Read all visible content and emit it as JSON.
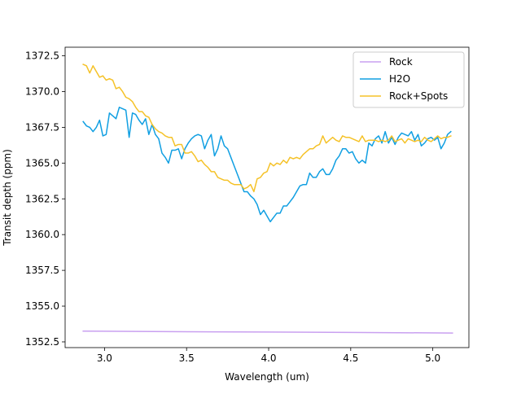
{
  "chart_data": {
    "type": "line",
    "title": "",
    "xlabel": "Wavelength (um)",
    "ylabel": "Transit depth (ppm)",
    "xlim": [
      2.76,
      5.22
    ],
    "ylim": [
      1352.1,
      1373.1
    ],
    "xticks": [
      3.0,
      3.5,
      4.0,
      4.5,
      5.0
    ],
    "xtick_labels": [
      "3.0",
      "3.5",
      "4.0",
      "4.5",
      "5.0"
    ],
    "yticks": [
      1352.5,
      1355.0,
      1357.5,
      1360.0,
      1362.5,
      1365.0,
      1367.5,
      1370.0,
      1372.5
    ],
    "ytick_labels": [
      "1352.5",
      "1355.0",
      "1357.5",
      "1360.0",
      "1362.5",
      "1365.0",
      "1367.5",
      "1370.0",
      "1372.5"
    ],
    "grid": false,
    "legend_position": "top-right",
    "series": [
      {
        "name": "Rock",
        "color": "#c9a0f0",
        "x": [
          2.87,
          3.5,
          4.0,
          4.5,
          5.12
        ],
        "y": [
          1353.25,
          1353.21,
          1353.19,
          1353.16,
          1353.12
        ]
      },
      {
        "name": "H2O",
        "color": "#109fe2",
        "x": [
          2.87,
          2.89,
          2.91,
          2.93,
          2.95,
          2.97,
          2.99,
          3.01,
          3.03,
          3.05,
          3.07,
          3.09,
          3.11,
          3.13,
          3.15,
          3.17,
          3.19,
          3.21,
          3.23,
          3.25,
          3.27,
          3.29,
          3.31,
          3.33,
          3.35,
          3.37,
          3.39,
          3.41,
          3.43,
          3.45,
          3.47,
          3.49,
          3.51,
          3.53,
          3.55,
          3.57,
          3.59,
          3.61,
          3.63,
          3.65,
          3.67,
          3.69,
          3.71,
          3.73,
          3.75,
          3.77,
          3.79,
          3.81,
          3.83,
          3.85,
          3.87,
          3.89,
          3.91,
          3.93,
          3.95,
          3.97,
          3.99,
          4.01,
          4.03,
          4.05,
          4.07,
          4.09,
          4.11,
          4.13,
          4.15,
          4.17,
          4.19,
          4.21,
          4.23,
          4.25,
          4.27,
          4.29,
          4.31,
          4.33,
          4.35,
          4.37,
          4.39,
          4.41,
          4.43,
          4.45,
          4.47,
          4.49,
          4.51,
          4.53,
          4.55,
          4.57,
          4.59,
          4.61,
          4.63,
          4.65,
          4.67,
          4.69,
          4.71,
          4.73,
          4.75,
          4.77,
          4.79,
          4.81,
          4.83,
          4.85,
          4.87,
          4.89,
          4.91,
          4.93,
          4.95,
          4.97,
          4.99,
          5.01,
          5.03,
          5.05,
          5.07,
          5.09,
          5.11
        ],
        "y": [
          1367.9,
          1367.6,
          1367.5,
          1367.2,
          1367.5,
          1368.0,
          1366.9,
          1367.0,
          1368.5,
          1368.3,
          1368.1,
          1368.9,
          1368.8,
          1368.7,
          1366.8,
          1368.5,
          1368.4,
          1368.0,
          1367.7,
          1368.1,
          1367.0,
          1367.7,
          1367.0,
          1366.7,
          1365.7,
          1365.4,
          1365.0,
          1365.9,
          1365.9,
          1366.0,
          1365.3,
          1366.0,
          1366.4,
          1366.7,
          1366.9,
          1367.0,
          1366.9,
          1366.0,
          1366.6,
          1367.0,
          1365.5,
          1366.0,
          1366.9,
          1366.2,
          1366.0,
          1365.4,
          1364.8,
          1364.2,
          1363.6,
          1363.0,
          1363.0,
          1362.7,
          1362.5,
          1362.1,
          1361.4,
          1361.7,
          1361.3,
          1360.9,
          1361.2,
          1361.5,
          1361.5,
          1362.0,
          1362.0,
          1362.3,
          1362.6,
          1363.0,
          1363.4,
          1363.5,
          1363.5,
          1364.3,
          1364.0,
          1364.0,
          1364.4,
          1364.6,
          1364.2,
          1364.2,
          1364.6,
          1365.2,
          1365.5,
          1366.0,
          1366.0,
          1365.7,
          1365.8,
          1365.3,
          1365.0,
          1365.2,
          1365.0,
          1366.4,
          1366.2,
          1366.7,
          1366.9,
          1366.4,
          1367.2,
          1366.4,
          1366.8,
          1366.3,
          1366.8,
          1367.1,
          1367.0,
          1366.9,
          1367.2,
          1366.6,
          1367.0,
          1366.2,
          1366.4,
          1366.7,
          1366.8,
          1366.6,
          1366.8,
          1366.0,
          1366.4,
          1367.0,
          1367.2
        ]
      },
      {
        "name": "Rock+Spots",
        "color": "#f5c228",
        "x": [
          2.87,
          2.89,
          2.91,
          2.93,
          2.95,
          2.97,
          2.99,
          3.01,
          3.03,
          3.05,
          3.07,
          3.09,
          3.11,
          3.13,
          3.15,
          3.17,
          3.19,
          3.21,
          3.23,
          3.25,
          3.27,
          3.29,
          3.31,
          3.33,
          3.35,
          3.37,
          3.39,
          3.41,
          3.43,
          3.45,
          3.47,
          3.49,
          3.51,
          3.53,
          3.55,
          3.57,
          3.59,
          3.61,
          3.63,
          3.65,
          3.67,
          3.69,
          3.71,
          3.73,
          3.75,
          3.77,
          3.79,
          3.81,
          3.83,
          3.85,
          3.87,
          3.89,
          3.91,
          3.93,
          3.95,
          3.97,
          3.99,
          4.01,
          4.03,
          4.05,
          4.07,
          4.09,
          4.11,
          4.13,
          4.15,
          4.17,
          4.19,
          4.21,
          4.23,
          4.25,
          4.27,
          4.29,
          4.31,
          4.33,
          4.35,
          4.37,
          4.39,
          4.41,
          4.43,
          4.45,
          4.47,
          4.49,
          4.51,
          4.53,
          4.55,
          4.57,
          4.59,
          4.61,
          4.63,
          4.65,
          4.67,
          4.69,
          4.71,
          4.73,
          4.75,
          4.77,
          4.79,
          4.81,
          4.83,
          4.85,
          4.87,
          4.89,
          4.91,
          4.93,
          4.95,
          4.97,
          4.99,
          5.01,
          5.03,
          5.05,
          5.07,
          5.09,
          5.11
        ],
        "y": [
          1371.9,
          1371.8,
          1371.3,
          1371.8,
          1371.4,
          1371.0,
          1371.1,
          1370.8,
          1370.9,
          1370.8,
          1370.2,
          1370.3,
          1370.0,
          1369.6,
          1369.5,
          1369.3,
          1368.9,
          1368.6,
          1368.6,
          1368.3,
          1368.2,
          1367.7,
          1367.4,
          1367.2,
          1367.1,
          1366.9,
          1366.8,
          1366.8,
          1366.2,
          1366.3,
          1366.3,
          1365.7,
          1365.7,
          1365.8,
          1365.5,
          1365.1,
          1365.2,
          1364.9,
          1364.7,
          1364.4,
          1364.4,
          1364.0,
          1363.9,
          1363.8,
          1363.8,
          1363.6,
          1363.5,
          1363.5,
          1363.5,
          1363.2,
          1363.3,
          1363.5,
          1363.0,
          1363.9,
          1364.0,
          1364.3,
          1364.4,
          1365.0,
          1364.8,
          1365.0,
          1364.9,
          1365.2,
          1365.0,
          1365.4,
          1365.3,
          1365.4,
          1365.3,
          1365.6,
          1365.8,
          1366.0,
          1366.0,
          1366.2,
          1366.3,
          1366.9,
          1366.4,
          1366.6,
          1366.8,
          1366.6,
          1366.5,
          1366.9,
          1366.8,
          1366.8,
          1366.7,
          1366.6,
          1366.5,
          1366.9,
          1366.5,
          1366.6,
          1366.6,
          1366.6,
          1366.5,
          1366.6,
          1366.5,
          1366.6,
          1366.9,
          1366.5,
          1366.6,
          1366.7,
          1366.4,
          1366.7,
          1366.6,
          1366.5,
          1366.6,
          1366.5,
          1366.8,
          1366.6,
          1366.5,
          1366.7,
          1366.9,
          1366.7,
          1366.8,
          1366.8,
          1366.9
        ]
      }
    ]
  }
}
